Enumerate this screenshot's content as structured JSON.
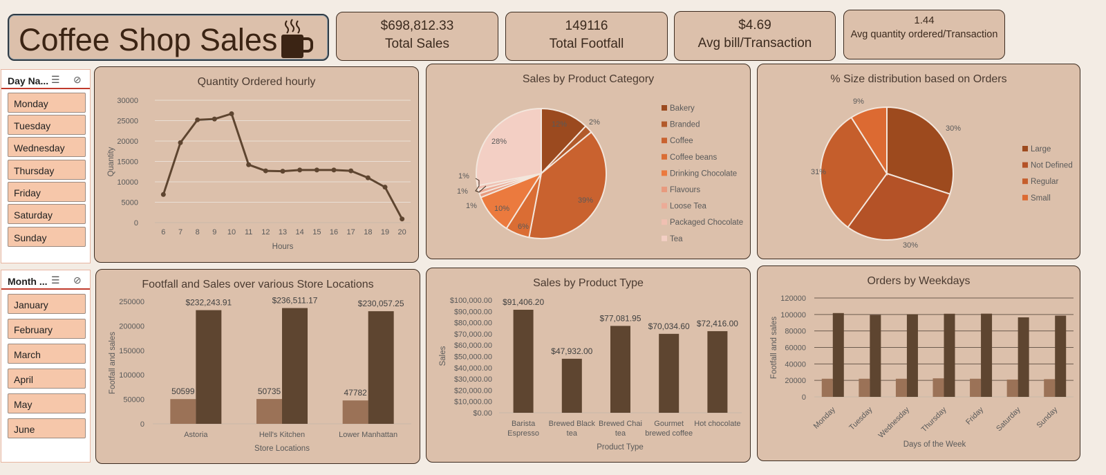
{
  "dashboard": {
    "title": "Coffee Shop Sales",
    "icon": "coffee-cup-icon"
  },
  "kpis": [
    {
      "value": "$698,812.33",
      "label": "Total Sales"
    },
    {
      "value": "149116",
      "label": "Total Footfall"
    },
    {
      "value": "$4.69",
      "label": "Avg bill/Transaction"
    },
    {
      "value": "1.44",
      "label": "Avg quantity ordered/Transaction"
    }
  ],
  "slicers": {
    "day": {
      "title": "Day Na...",
      "items": [
        "Monday",
        "Tuesday",
        "Wednesday",
        "Thursday",
        "Friday",
        "Saturday",
        "Sunday"
      ]
    },
    "month": {
      "title": "Month ...",
      "items": [
        "January",
        "February",
        "March",
        "April",
        "May",
        "June"
      ]
    }
  },
  "colors": {
    "card": "#dcc0ab",
    "dark_brown": "#5e4530",
    "light_brown": "#9b7257",
    "line": "#5e4530",
    "slicer_item": "#f6c7aa"
  },
  "chart_data": [
    {
      "id": "hourly",
      "type": "line",
      "title": "Quantity Ordered hourly",
      "xlabel": "Hours",
      "ylabel": "Quantity",
      "x": [
        6,
        7,
        8,
        9,
        10,
        11,
        12,
        13,
        14,
        15,
        16,
        17,
        18,
        19,
        20
      ],
      "values": [
        6900,
        19600,
        25200,
        25400,
        26700,
        14200,
        12700,
        12600,
        12900,
        12900,
        12900,
        12700,
        11000,
        8700,
        900
      ],
      "ylim": [
        0,
        30000
      ],
      "yticks": [
        "30000",
        "25000",
        "20000",
        "15000",
        "10000",
        "5000",
        "0"
      ],
      "grid": true
    },
    {
      "id": "category",
      "type": "pie",
      "title": "Sales by Product Category",
      "legend": "right",
      "slices": [
        {
          "name": "Bakery",
          "value": 12,
          "label": "12%",
          "color": "#9b4a1f"
        },
        {
          "name": "Branded",
          "value": 2,
          "label": "2%",
          "color": "#b25a2b"
        },
        {
          "name": "Coffee",
          "value": 39,
          "label": "39%",
          "color": "#c9622f"
        },
        {
          "name": "Coffee beans",
          "value": 6,
          "label": "6%",
          "color": "#da6d34"
        },
        {
          "name": "Drinking Chocolate",
          "value": 10,
          "label": "10%",
          "color": "#eb7a3e"
        },
        {
          "name": "Flavours",
          "value": 1,
          "label": "1%",
          "color": "#e89a7e"
        },
        {
          "name": "Loose Tea",
          "value": 1,
          "label": "1%",
          "color": "#ecab97"
        },
        {
          "name": "Packaged Chocolate",
          "value": 1,
          "label": "1%",
          "color": "#f0c0b2"
        },
        {
          "name": "Tea",
          "value": 28,
          "label": "28%",
          "color": "#f3cfc4"
        }
      ]
    },
    {
      "id": "size",
      "type": "pie",
      "title": "% Size distribution based on Orders",
      "legend": "right",
      "slices": [
        {
          "name": "Large",
          "value": 30,
          "label": "30%",
          "color": "#9d4a1e"
        },
        {
          "name": "Not Defined",
          "value": 30,
          "label": "30%",
          "color": "#b45227"
        },
        {
          "name": "Regular",
          "value": 31,
          "label": "31%",
          "color": "#c55e2c"
        },
        {
          "name": "Small",
          "value": 9,
          "label": "9%",
          "color": "#dc6a32"
        }
      ]
    },
    {
      "id": "locations",
      "type": "bar",
      "title": "Footfall and Sales over various Store Locations",
      "xlabel": "Store Locations",
      "ylabel": "Footfall and sales",
      "categories": [
        "Astoria",
        "Hell's Kitchen",
        "Lower Manhattan"
      ],
      "series": [
        {
          "values": [
            50599,
            50735,
            47782
          ],
          "labels": [
            "50599",
            "50735",
            "47782"
          ],
          "color": "#9b7257"
        },
        {
          "values": [
            232243.91,
            236511.17,
            230057.25
          ],
          "labels": [
            "$232,243.91",
            "$236,511.17",
            "$230,057.25"
          ],
          "color": "#5e4530"
        }
      ],
      "ylim": [
        0,
        250000
      ],
      "yticks": [
        "250000",
        "200000",
        "150000",
        "100000",
        "50000",
        "0"
      ]
    },
    {
      "id": "product_type",
      "type": "bar",
      "title": "Sales by Product Type",
      "xlabel": "Product Type",
      "ylabel": "Sales",
      "categories": [
        [
          "Barista",
          "Espresso"
        ],
        [
          "Brewed Black",
          "tea"
        ],
        [
          "Brewed Chai",
          "tea"
        ],
        [
          "Gourmet",
          "brewed coffee"
        ],
        [
          "Hot chocolate"
        ]
      ],
      "values": [
        91406.2,
        47932.0,
        77081.95,
        70034.6,
        72416.0
      ],
      "labels": [
        "$91,406.20",
        "$47,932.00",
        "$77,081.95",
        "$70,034.60",
        "$72,416.00"
      ],
      "ylim": [
        0,
        100000
      ],
      "yticks": [
        "$100,000.00",
        "$90,000.00",
        "$80,000.00",
        "$70,000.00",
        "$60,000.00",
        "$50,000.00",
        "$40,000.00",
        "$30,000.00",
        "$20,000.00",
        "$10,000.00",
        "$0.00"
      ]
    },
    {
      "id": "weekdays",
      "type": "bar",
      "title": "Orders by Weekdays",
      "xlabel": "Days of the Week",
      "ylabel": "Footfall and sales",
      "categories": [
        "Monday",
        "Tuesday",
        "Wednesday",
        "Thursday",
        "Friday",
        "Saturday",
        "Sunday"
      ],
      "series": [
        {
          "values": [
            22000,
            22000,
            22000,
            22500,
            22000,
            21000,
            21500
          ],
          "color": "#9b7257"
        },
        {
          "values": [
            101700,
            99500,
            100200,
            100900,
            101000,
            96500,
            98600
          ],
          "color": "#5e4530"
        }
      ],
      "ylim": [
        0,
        120000
      ],
      "yticks": [
        "120000",
        "100000",
        "80000",
        "60000",
        "40000",
        "20000",
        "0"
      ],
      "grid": true
    }
  ]
}
